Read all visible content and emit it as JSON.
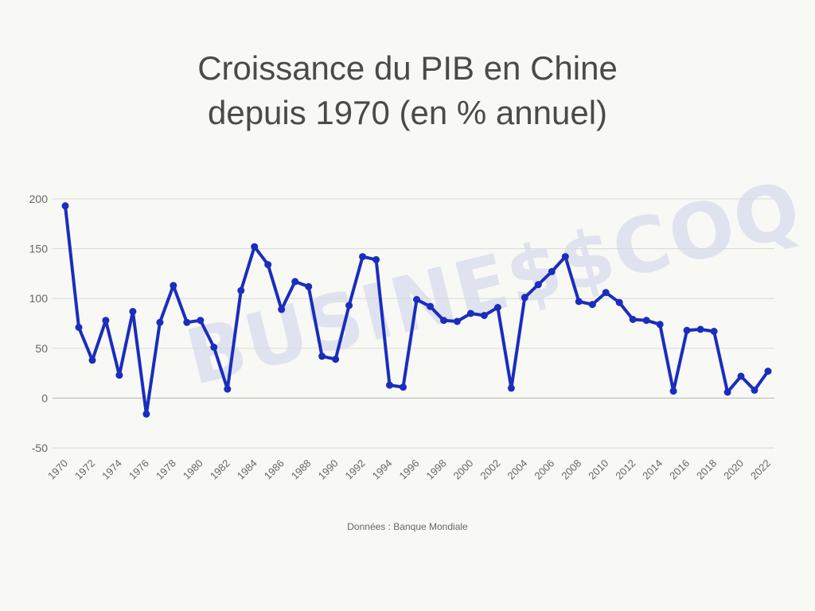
{
  "chart_data": {
    "type": "line",
    "title_line1": "Croissance du PIB en Chine",
    "title_line2": "depuis 1970 (en % annuel)",
    "source": "Données : Banque Mondiale",
    "watermark": "BUSINE$$COQ",
    "color": "#1a2dbd",
    "grid_color": "#d9d9d9",
    "ylim": [
      -50,
      200
    ],
    "yticks": [
      -50,
      0,
      50,
      100,
      150,
      200
    ],
    "x_tick_labels": [
      "1970",
      "1972",
      "1974",
      "1976",
      "1978",
      "1980",
      "1982",
      "1984",
      "1986",
      "1988",
      "1990",
      "1992",
      "1994",
      "1996",
      "1998",
      "2000",
      "2002",
      "2004",
      "2006",
      "2008",
      "2010",
      "2012",
      "2014",
      "2016",
      "2018",
      "2020",
      "2022"
    ],
    "series": [
      {
        "x": [
          1970,
          1971,
          1972,
          1973,
          1974,
          1975,
          1976,
          1977,
          1978,
          1979,
          1980,
          1981,
          1982,
          1983,
          1984,
          1985,
          1986,
          1987,
          1988,
          1989,
          1990,
          1991,
          1992,
          1993,
          1994,
          1995,
          1996,
          1997,
          1998,
          1999,
          2000,
          2001,
          2002,
          2003,
          2004,
          2005,
          2006,
          2007,
          2008,
          2009,
          2010,
          2011,
          2012,
          2013,
          2014,
          2015,
          2016,
          2017,
          2018,
          2019,
          2020,
          2021,
          2022
        ],
        "values": [
          193,
          71,
          38,
          78,
          23,
          87,
          -16,
          76,
          113,
          76,
          78,
          51,
          9,
          108,
          152,
          134,
          89,
          117,
          112,
          42,
          39,
          93,
          142,
          139,
          13,
          11,
          99,
          92,
          78,
          77,
          85,
          83,
          91,
          10,
          101,
          114,
          127,
          142,
          97,
          94,
          106,
          96,
          79,
          78,
          74,
          7,
          68,
          69,
          67,
          6,
          22,
          8,
          27
        ]
      }
    ]
  }
}
